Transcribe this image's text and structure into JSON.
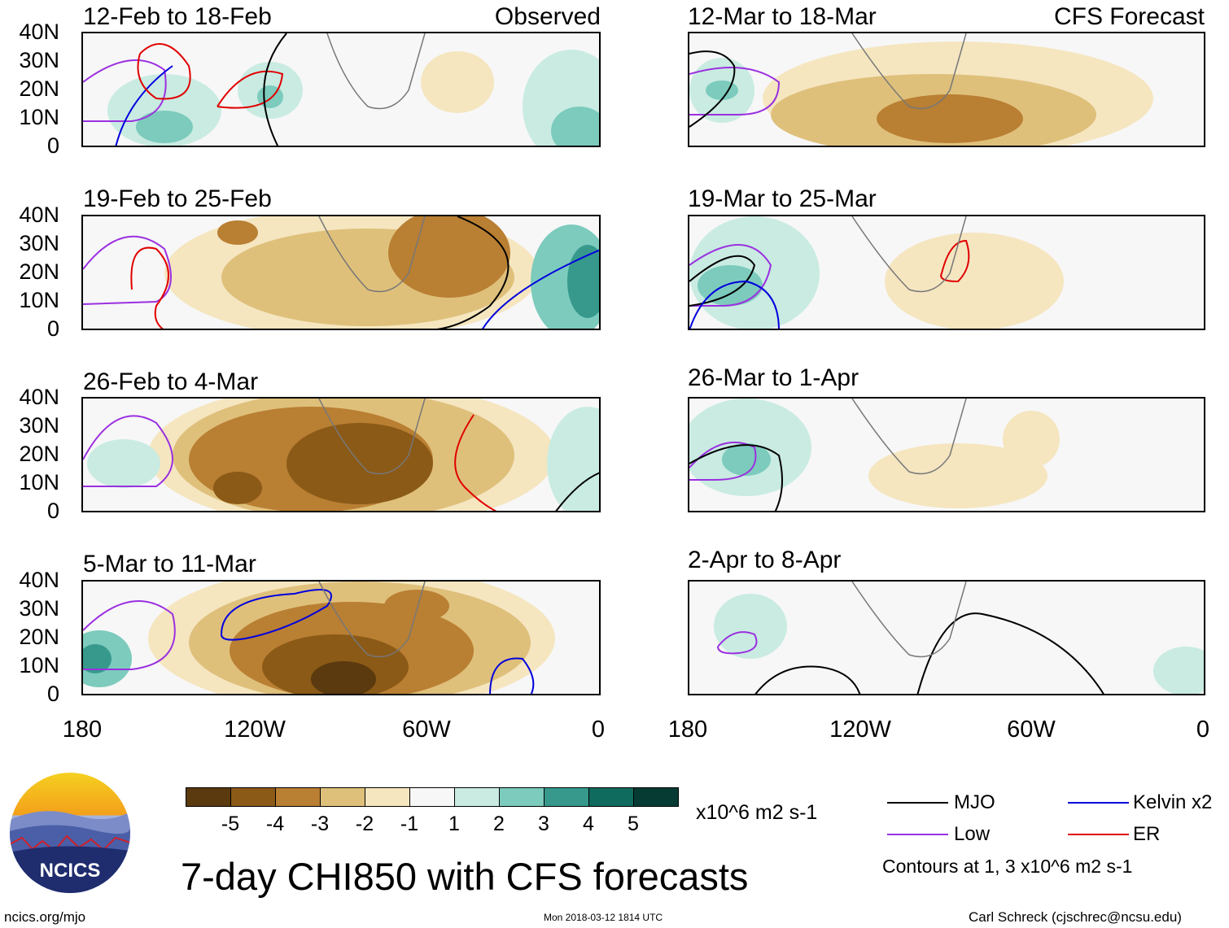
{
  "left_column_label": "Observed",
  "right_column_label": "CFS Forecast",
  "panels_left": [
    {
      "period": "12-Feb to 18-Feb"
    },
    {
      "period": "19-Feb to 25-Feb"
    },
    {
      "period": "26-Feb to 4-Mar"
    },
    {
      "period": "5-Mar to 11-Mar"
    }
  ],
  "panels_right": [
    {
      "period": "12-Mar to 18-Mar"
    },
    {
      "period": "19-Mar to 25-Mar"
    },
    {
      "period": "26-Mar to 1-Apr"
    },
    {
      "period": "2-Apr to 8-Apr"
    }
  ],
  "lat_labels": [
    "40N",
    "30N",
    "20N",
    "10N",
    "0"
  ],
  "lon_labels": [
    "180",
    "120W",
    "60W",
    "0"
  ],
  "colorbar": {
    "ticks": [
      "-5",
      "-4",
      "-3",
      "-2",
      "-1",
      "1",
      "2",
      "3",
      "4",
      "5"
    ],
    "colors": [
      "#5a3a0e",
      "#8b5a17",
      "#b97f33",
      "#dfc07b",
      "#f5e6c0",
      "#f7f7f7",
      "#c9ebe2",
      "#7ccbbd",
      "#36998c",
      "#0f6b5e",
      "#063b33"
    ],
    "units": "x10^6 m2 s-1"
  },
  "title": "7-day CHI850 with CFS forecasts",
  "legend": {
    "items": [
      {
        "label": "MJO",
        "color": "#000000"
      },
      {
        "label": "Kelvin x2",
        "color": "#0000dd"
      },
      {
        "label": "Low",
        "color": "#9b30e0"
      },
      {
        "label": "ER",
        "color": "#e00000"
      }
    ],
    "note": "Contours at 1, 3 x10^6 m2 s-1"
  },
  "logo_text": "NCICS",
  "footer": {
    "website": "ncics.org/mjo",
    "timestamp": "Mon 2018-03-12 1814 UTC",
    "credit": "Carl Schreck (cjschrec@ncsu.edu)"
  }
}
